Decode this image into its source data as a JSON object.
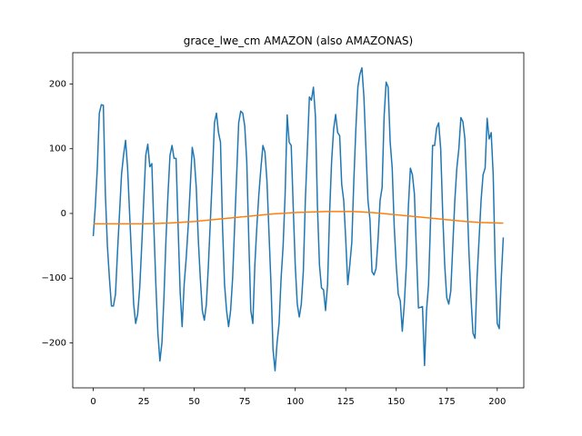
{
  "chart_data": {
    "type": "line",
    "title": "grace_lwe_cm AMAZON (also AMAZONAS)",
    "x": [
      0,
      1,
      2,
      3,
      4,
      5,
      6,
      7,
      8,
      9,
      10,
      11,
      12,
      13,
      14,
      15,
      16,
      17,
      18,
      19,
      20,
      21,
      22,
      23,
      24,
      25,
      26,
      27,
      28,
      29,
      30,
      31,
      32,
      33,
      34,
      35,
      36,
      37,
      38,
      39,
      40,
      41,
      42,
      43,
      44,
      45,
      46,
      47,
      48,
      49,
      50,
      51,
      52,
      53,
      54,
      55,
      56,
      57,
      58,
      59,
      60,
      61,
      62,
      63,
      64,
      65,
      66,
      67,
      68,
      69,
      70,
      71,
      72,
      73,
      74,
      75,
      76,
      77,
      78,
      79,
      80,
      81,
      82,
      83,
      84,
      85,
      86,
      87,
      88,
      89,
      90,
      91,
      92,
      93,
      94,
      95,
      96,
      97,
      98,
      99,
      100,
      101,
      102,
      103,
      104,
      105,
      106,
      107,
      108,
      109,
      110,
      111,
      112,
      113,
      114,
      115,
      116,
      117,
      118,
      119,
      120,
      121,
      122,
      123,
      124,
      125,
      126,
      127,
      128,
      129,
      130,
      131,
      132,
      133,
      134,
      135,
      136,
      137,
      138,
      139,
      140,
      141,
      142,
      143,
      144,
      145,
      146,
      147,
      148,
      149,
      150,
      151,
      152,
      153,
      154,
      155,
      156,
      157,
      158,
      159,
      160,
      161,
      162,
      163,
      164,
      165,
      166,
      167,
      168,
      169,
      170,
      171,
      172,
      173,
      174,
      175,
      176,
      177,
      178,
      179,
      180,
      181,
      182,
      183,
      184,
      185,
      186,
      187,
      188,
      189,
      190,
      191,
      192,
      193,
      194,
      195,
      196,
      197,
      198,
      199,
      200,
      201,
      202,
      203
    ],
    "series": [
      {
        "color": "#1f77b4",
        "values": [
          -35,
          10,
          70,
          155,
          168,
          167,
          30,
          -50,
          -100,
          -143,
          -143,
          -125,
          -60,
          0,
          60,
          90,
          113,
          70,
          0,
          -70,
          -140,
          -170,
          -155,
          -115,
          -50,
          20,
          90,
          107,
          72,
          77,
          -20,
          -110,
          -185,
          -228,
          -200,
          -130,
          -40,
          30,
          90,
          105,
          85,
          85,
          -20,
          -120,
          -175,
          -110,
          -70,
          -20,
          40,
          102,
          85,
          40,
          -40,
          -100,
          -150,
          -165,
          -140,
          -80,
          -10,
          60,
          140,
          155,
          125,
          110,
          -20,
          -110,
          -150,
          -175,
          -150,
          -100,
          -20,
          60,
          140,
          158,
          155,
          135,
          80,
          -40,
          -150,
          -170,
          -80,
          -20,
          30,
          70,
          105,
          95,
          50,
          -30,
          -110,
          -210,
          -243,
          -200,
          -170,
          -100,
          -50,
          30,
          152,
          110,
          105,
          10,
          -80,
          -140,
          -160,
          -140,
          -90,
          20,
          100,
          180,
          175,
          195,
          150,
          10,
          -80,
          -115,
          -118,
          -150,
          -110,
          0,
          80,
          130,
          153,
          125,
          120,
          45,
          20,
          -40,
          -110,
          -80,
          -45,
          50,
          130,
          195,
          215,
          225,
          180,
          100,
          20,
          -10,
          -90,
          -95,
          -85,
          -40,
          20,
          40,
          150,
          203,
          195,
          110,
          70,
          -20,
          -80,
          -125,
          -135,
          -182,
          -140,
          -80,
          10,
          70,
          60,
          30,
          -60,
          -146,
          -145,
          -144,
          -235,
          -150,
          -110,
          -10,
          105,
          105,
          132,
          140,
          100,
          0,
          -80,
          -130,
          -140,
          -120,
          -50,
          20,
          70,
          100,
          148,
          142,
          115,
          30,
          -60,
          -130,
          -185,
          -193,
          -100,
          -40,
          20,
          60,
          70,
          147,
          115,
          125,
          60,
          -80,
          -170,
          -178,
          -100,
          -37
        ]
      },
      {
        "color": "#ff7f0e",
        "values": [
          -16,
          -16,
          -16,
          -16,
          -16,
          -16,
          -16,
          -16,
          -16,
          -16,
          -16,
          -16,
          -16,
          -16,
          -16,
          -16,
          -16,
          -16,
          -16,
          -16,
          -16,
          -16,
          -16,
          -16,
          -16,
          -16,
          -15.9,
          -15.8,
          -15.8,
          -15.7,
          -15.6,
          -15.5,
          -15.4,
          -15.3,
          -15.2,
          -15.1,
          -15,
          -14.9,
          -14.8,
          -14.6,
          -14.4,
          -14.2,
          -14,
          -13.8,
          -13.6,
          -13.4,
          -13.2,
          -13,
          -12.8,
          -12.6,
          -12.4,
          -12.1,
          -11.8,
          -11.5,
          -11.2,
          -10.9,
          -10.6,
          -10.3,
          -10,
          -9.7,
          -9.4,
          -9.1,
          -8.8,
          -8.5,
          -8.2,
          -7.9,
          -7.6,
          -7.3,
          -7,
          -6.7,
          -6.4,
          -6.1,
          -5.8,
          -5.5,
          -5.2,
          -4.9,
          -4.6,
          -4.3,
          -4,
          -3.7,
          -3.4,
          -3.1,
          -2.8,
          -2.5,
          -2.2,
          -1.9,
          -1.6,
          -1.3,
          -1,
          -0.8,
          -0.6,
          -0.4,
          -0.2,
          0,
          0.2,
          0.4,
          0.6,
          0.8,
          1,
          1.2,
          1.4,
          1.5,
          1.6,
          1.7,
          1.8,
          1.9,
          2,
          2.1,
          2.2,
          2.3,
          2.4,
          2.5,
          2.6,
          2.7,
          2.8,
          2.9,
          3,
          3,
          3,
          3,
          3,
          3,
          3,
          3,
          3,
          3,
          3,
          3,
          2.9,
          2.8,
          2.7,
          2.6,
          2.5,
          2.3,
          2.1,
          1.9,
          1.7,
          1.5,
          1.3,
          1.1,
          0.9,
          0.6,
          0.3,
          0,
          -0.3,
          -0.6,
          -0.9,
          -1.2,
          -1.5,
          -1.8,
          -2.1,
          -2.4,
          -2.7,
          -3,
          -3.3,
          -3.6,
          -3.9,
          -4.2,
          -4.5,
          -4.8,
          -5.1,
          -5.4,
          -5.7,
          -6,
          -6.3,
          -6.6,
          -6.9,
          -7.2,
          -7.5,
          -7.8,
          -8.1,
          -8.4,
          -8.7,
          -9,
          -9.3,
          -9.6,
          -9.9,
          -10.2,
          -10.5,
          -10.8,
          -11.1,
          -11.4,
          -11.7,
          -12,
          -12.3,
          -12.6,
          -12.8,
          -13,
          -13.2,
          -13.4,
          -13.6,
          -13.8,
          -14,
          -14.1,
          -14.2,
          -14.3,
          -14.4,
          -14.5,
          -14.6,
          -14.7,
          -14.8,
          -14.9,
          -15,
          -15
        ]
      }
    ],
    "xlim": [
      -10.15,
      213.15
    ],
    "xticks": [
      0,
      25,
      50,
      75,
      100,
      125,
      150,
      175,
      200
    ],
    "ylim": [
      -269.5,
      248.4
    ],
    "yticks": [
      {
        "value": -200,
        "label": "−200"
      },
      {
        "value": -100,
        "label": "−100"
      },
      0,
      100,
      200
    ],
    "grid": false
  }
}
